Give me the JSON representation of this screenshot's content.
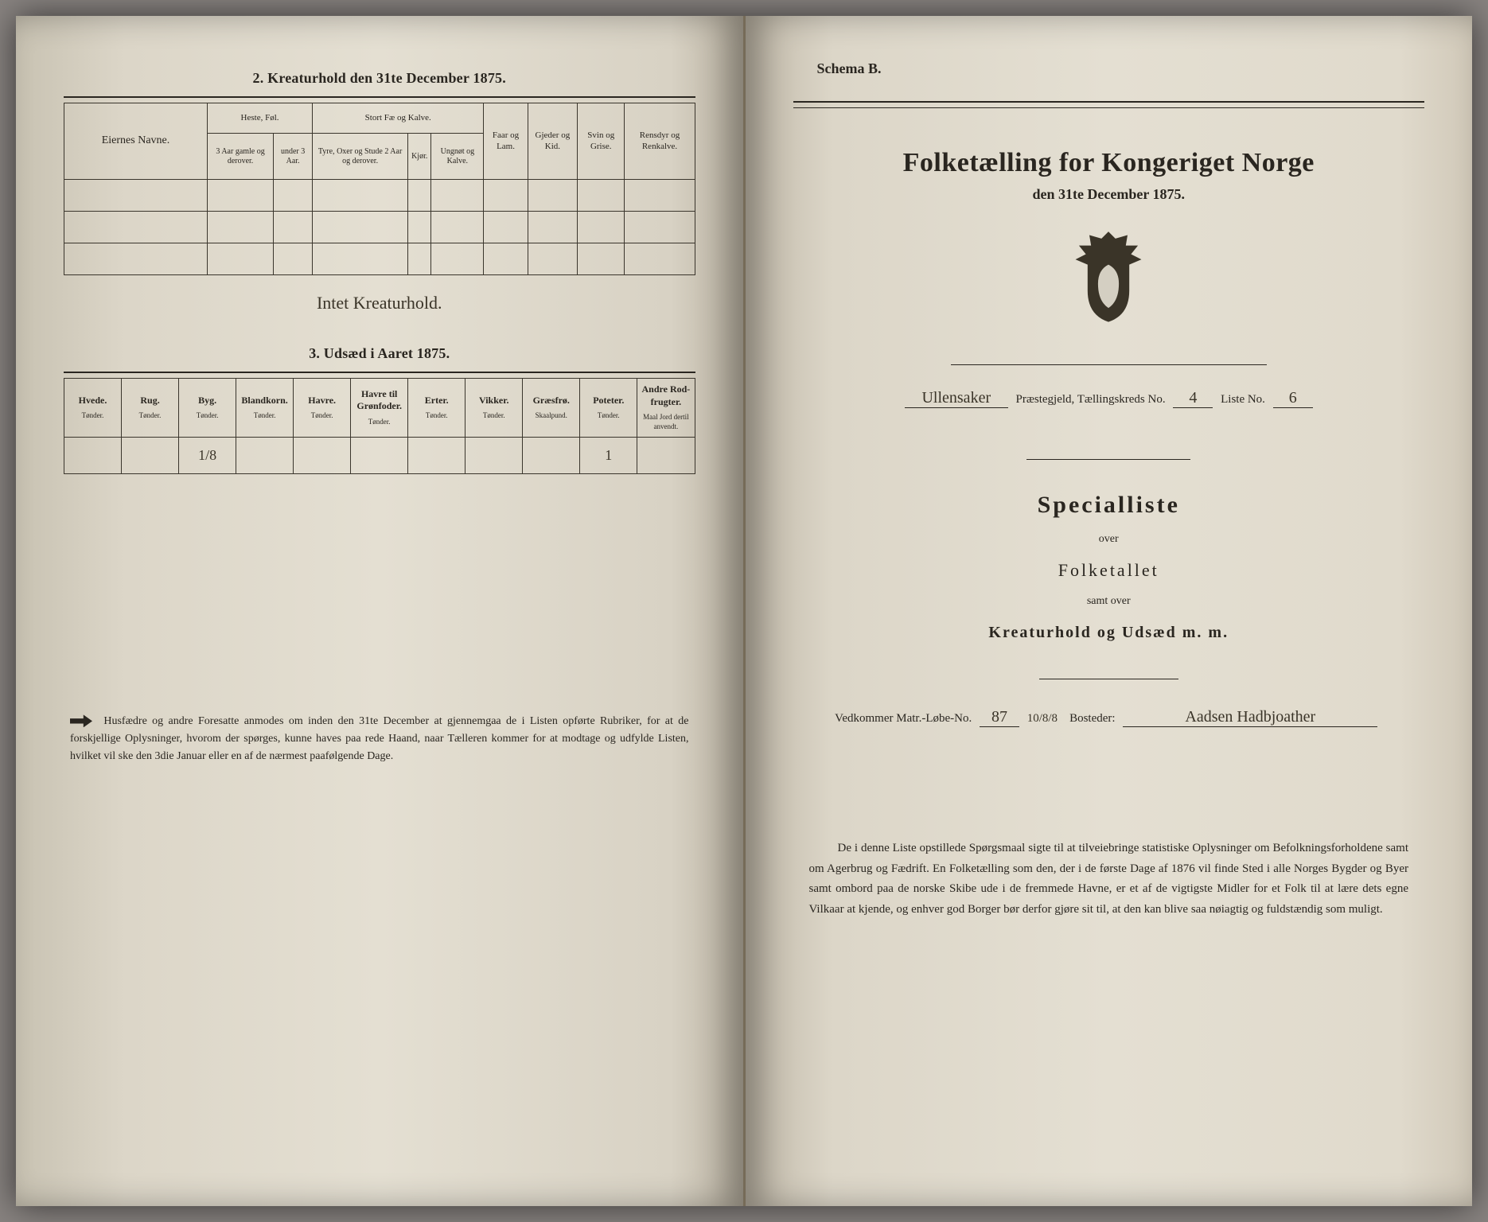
{
  "left": {
    "section2_title": "2.  Kreaturhold den 31te December 1875.",
    "section3_title": "3.  Udsæd i Aaret 1875.",
    "table1": {
      "eier_label": "Eiernes Navne.",
      "group_heste": "Heste, Føl.",
      "group_stort": "Stort Fæ og Kalve.",
      "faar": "Faar og Lam.",
      "gjeder": "Gjeder og Kid.",
      "svin": "Svin og Grise.",
      "rensdyr": "Rensdyr og Renkalve.",
      "sub_heste1": "3 Aar gamle og derover.",
      "sub_heste2": "under 3 Aar.",
      "sub_stort1": "Tyre, Oxer og Stude 2 Aar og derover.",
      "sub_stort2": "Kjør.",
      "sub_stort3": "Ungnøt og Kalve.",
      "rows": 3,
      "handwritten_below": "Intet Kreaturhold."
    },
    "table2": {
      "cols": [
        {
          "h": "Hvede.",
          "u": "Tønder."
        },
        {
          "h": "Rug.",
          "u": "Tønder."
        },
        {
          "h": "Byg.",
          "u": "Tønder."
        },
        {
          "h": "Blandkorn.",
          "u": "Tønder."
        },
        {
          "h": "Havre.",
          "u": "Tønder."
        },
        {
          "h": "Havre til Grønfoder.",
          "u": "Tønder."
        },
        {
          "h": "Erter.",
          "u": "Tønder."
        },
        {
          "h": "Vikker.",
          "u": "Tønder."
        },
        {
          "h": "Græsfrø.",
          "u": "Skaalpund."
        },
        {
          "h": "Poteter.",
          "u": "Tønder."
        },
        {
          "h": "Andre Rod-frugter.",
          "u": "Maal Jord dertil anvendt."
        }
      ],
      "values": [
        "",
        "",
        "1/8",
        "",
        "",
        "",
        "",
        "",
        "",
        "1",
        ""
      ]
    },
    "footnote": "Husfædre og andre Foresatte anmodes om inden den 31te December at gjennemgaa de i Listen opførte Rubriker, for at de forskjellige Oplysninger, hvorom der spørges, kunne haves paa rede Haand, naar Tælleren kommer for at modtage og udfylde Listen, hvilket vil ske den 3die Januar eller en af de nærmest paafølgende Dage."
  },
  "right": {
    "schema": "Schema B.",
    "big_title": "Folketælling for Kongeriget Norge",
    "subtitle": "den 31te December 1875.",
    "crest_color": "#3a3428",
    "line": {
      "prefix": "Ullensaker",
      "label1": "Præstegjeld, Tællingskreds No.",
      "val1": "4",
      "label2": "Liste No.",
      "val2": "6"
    },
    "special": "Specialliste",
    "over1": "over",
    "folketallet": "Folketallet",
    "over2": "samt over",
    "kreatur": "Kreaturhold og Udsæd m. m.",
    "ved": {
      "label1": "Vedkommer Matr.-Løbe-No.",
      "val1": "87",
      "frac": "10/8/8",
      "label2": "Bosteder:",
      "val2": "Aadsen Hadbjoather"
    },
    "paragraph": "De i denne Liste opstillede Spørgsmaal sigte til at tilveiebringe statistiske Oplysninger om Befolkningsforholdene samt om Agerbrug og Fædrift.  En Folketælling som den, der i de første Dage af 1876 vil finde Sted i alle Norges Bygder og Byer samt ombord paa de norske Skibe ude i de fremmede Havne, er et af de vigtigste Midler for et Folk til at lære dets egne Vilkaar at kjende, og enhver god Borger bør derfor gjøre sit til, at den kan blive saa nøiagtig og fuldstændig som muligt."
  },
  "colors": {
    "ink": "#2a2620",
    "paper": "#e0dacc"
  }
}
